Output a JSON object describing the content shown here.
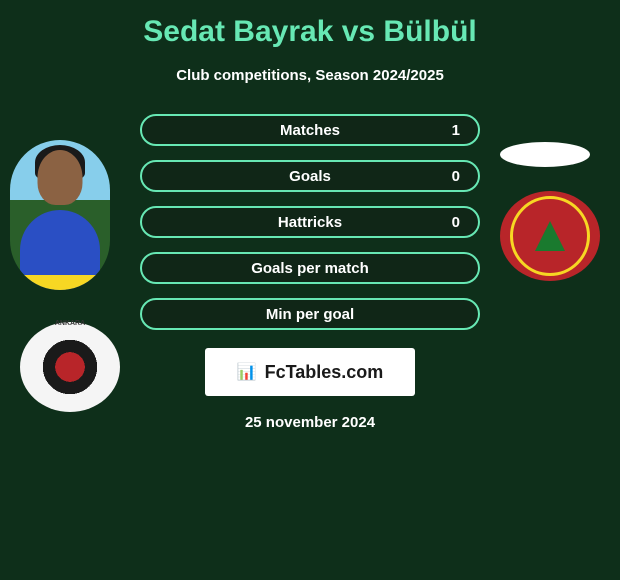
{
  "header": {
    "title": "Sedat Bayrak vs Bülbül",
    "subtitle": "Club competitions, Season 2024/2025"
  },
  "stats": [
    {
      "label": "Matches",
      "value_right": "1"
    },
    {
      "label": "Goals",
      "value_right": "0"
    },
    {
      "label": "Hattricks",
      "value_right": "0"
    },
    {
      "label": "Goals per match",
      "value_right": ""
    },
    {
      "label": "Min per goal",
      "value_right": ""
    }
  ],
  "footer": {
    "brand": "FcTables.com",
    "date": "25 november 2024"
  },
  "colors": {
    "background": "#0e2f1a",
    "accent": "#67e8b4",
    "text": "#ffffff",
    "pill_bg": "#102617",
    "club_red": "#b82529",
    "club_yellow": "#f7d723",
    "jersey_blue": "#2a4fc4"
  }
}
